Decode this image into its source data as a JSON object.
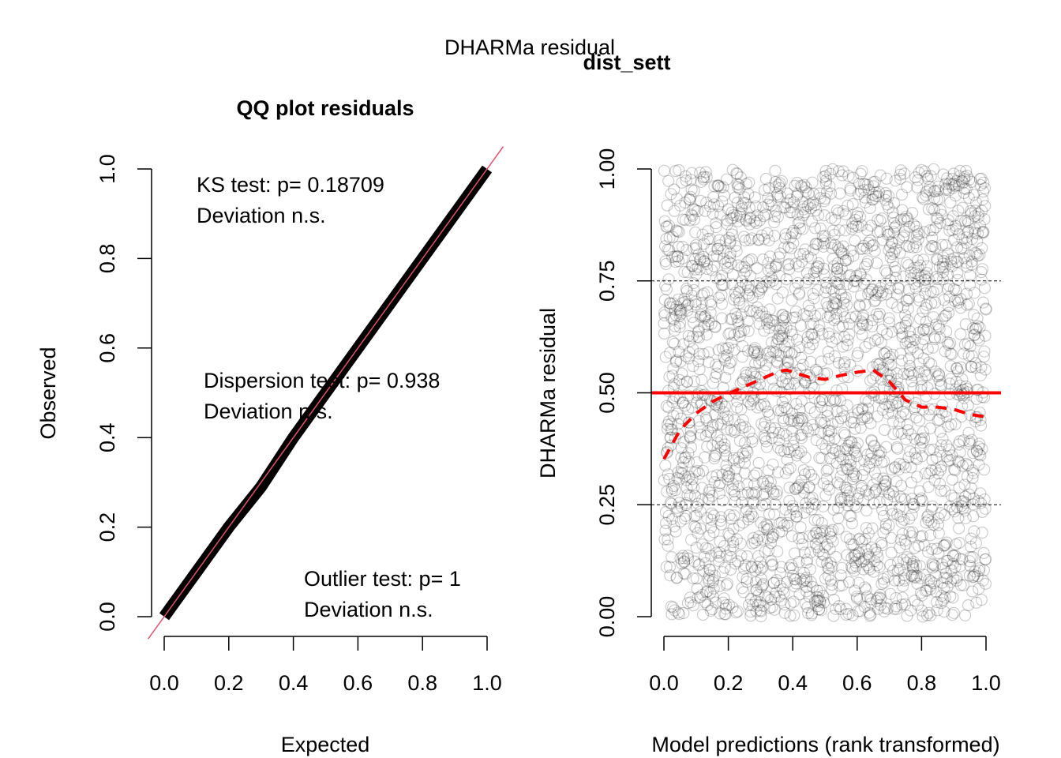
{
  "figure": {
    "suptitle": "DHARMa residual",
    "subtitle": "dist_sett"
  },
  "chart_data": [
    {
      "type": "line",
      "title": "QQ plot residuals",
      "xlabel": "Expected",
      "ylabel": "Observed",
      "xlim": [
        0,
        1
      ],
      "ylim": [
        0,
        1
      ],
      "xticks": [
        "0.0",
        "0.2",
        "0.4",
        "0.6",
        "0.8",
        "1.0"
      ],
      "yticks": [
        "0.0",
        "0.2",
        "0.4",
        "0.6",
        "0.8",
        "1.0"
      ],
      "xtick_values": [
        0,
        0.2,
        0.4,
        0.6,
        0.8,
        1.0
      ],
      "ytick_values": [
        0,
        0.2,
        0.4,
        0.6,
        0.8,
        1.0
      ],
      "grid": false,
      "series": [
        {
          "name": "observed quantiles",
          "color": "#000000",
          "x": [
            0,
            0.1,
            0.2,
            0.3,
            0.4,
            0.5,
            0.6,
            0.7,
            0.8,
            0.9,
            1.0
          ],
          "y": [
            0,
            0.1,
            0.2,
            0.29,
            0.4,
            0.5,
            0.6,
            0.7,
            0.8,
            0.9,
            1.0
          ]
        },
        {
          "name": "1:1 reference line",
          "color": "#df536b",
          "x": [
            -0.05,
            1.05
          ],
          "y": [
            -0.05,
            1.05
          ]
        }
      ],
      "annotations": [
        {
          "id": "ks",
          "lines": [
            "KS test: p= 0.18709",
            "Deviation  n.s."
          ]
        },
        {
          "id": "dispersion",
          "lines": [
            "Dispersion test: p= 0.938",
            "Deviation  n.s."
          ]
        },
        {
          "id": "outlier",
          "lines": [
            "Outlier test: p= 1",
            "Deviation  n.s."
          ]
        }
      ]
    },
    {
      "type": "scatter",
      "title": "",
      "xlabel": "Model predictions (rank transformed)",
      "ylabel": "DHARMa residual",
      "xlim": [
        0,
        1
      ],
      "ylim": [
        0,
        1
      ],
      "xticks": [
        "0.0",
        "0.2",
        "0.4",
        "0.6",
        "0.8",
        "1.0"
      ],
      "yticks": [
        "0.00",
        "0.25",
        "0.50",
        "0.75",
        "1.00"
      ],
      "xtick_values": [
        0,
        0.2,
        0.4,
        0.6,
        0.8,
        1.0
      ],
      "ytick_values": [
        0,
        0.25,
        0.5,
        0.75,
        1.0
      ],
      "grid": false,
      "points": {
        "n": 2600,
        "distribution": "uniform",
        "color": "#00000033"
      },
      "reference_lines": [
        {
          "name": "quantile 0.25",
          "y": 0.25,
          "style": "dashed",
          "color": "#000000"
        },
        {
          "name": "quantile 0.5",
          "y": 0.5,
          "style": "solid",
          "color": "#ff0000"
        },
        {
          "name": "quantile 0.75",
          "y": 0.75,
          "style": "dashed",
          "color": "#000000"
        }
      ],
      "smooth_curve": {
        "name": "fitted spline quantile 0.5",
        "color": "#ff0000",
        "style": "dashed",
        "x": [
          0.0,
          0.05,
          0.1,
          0.15,
          0.2,
          0.25,
          0.3,
          0.35,
          0.38,
          0.45,
          0.5,
          0.55,
          0.6,
          0.65,
          0.7,
          0.75,
          0.8,
          0.85,
          0.9,
          0.95,
          1.0
        ],
        "y": [
          0.352,
          0.417,
          0.454,
          0.48,
          0.498,
          0.514,
          0.53,
          0.546,
          0.551,
          0.535,
          0.53,
          0.539,
          0.546,
          0.551,
          0.525,
          0.484,
          0.468,
          0.468,
          0.463,
          0.452,
          0.446
        ]
      }
    }
  ]
}
